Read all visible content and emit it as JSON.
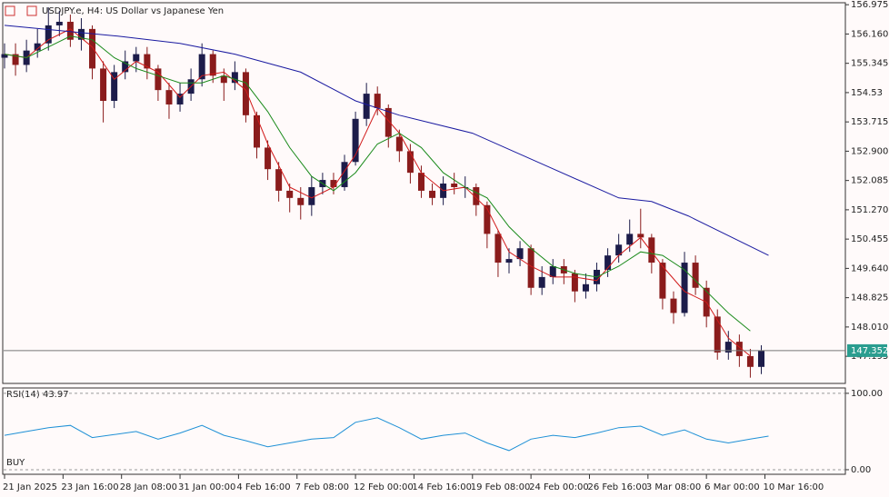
{
  "chart_data": [
    {
      "type": "candlestick",
      "title": "USDJPY.e, H4:  US Dollar vs Japanese Yen",
      "x": [
        0,
        3,
        6,
        9,
        12,
        15,
        18,
        21,
        24,
        27,
        30,
        33,
        36,
        39,
        42,
        45,
        48,
        51,
        54,
        57,
        60,
        63,
        66,
        69,
        72,
        75,
        78,
        81,
        84,
        87,
        90,
        93,
        96,
        99,
        102,
        105,
        108,
        111,
        114,
        117,
        120,
        123,
        126,
        129,
        132,
        135,
        138,
        141,
        144,
        147,
        150,
        153,
        156,
        159,
        162,
        165,
        168,
        171,
        174,
        177,
        180,
        183,
        186,
        189,
        192,
        195,
        198,
        201,
        204,
        207
      ],
      "open": [
        155.5,
        155.6,
        155.3,
        155.7,
        155.9,
        156.4,
        156.5,
        156.0,
        156.3,
        155.2,
        154.3,
        155.1,
        155.4,
        155.6,
        155.2,
        154.6,
        154.2,
        154.5,
        154.9,
        155.6,
        155.0,
        154.8,
        155.1,
        153.9,
        153.0,
        152.4,
        151.8,
        151.6,
        151.4,
        151.9,
        152.1,
        151.9,
        152.6,
        153.8,
        154.5,
        154.1,
        153.3,
        152.9,
        152.3,
        151.8,
        151.6,
        152.0,
        151.9,
        151.9,
        151.4,
        150.6,
        149.8,
        149.9,
        150.2,
        149.1,
        149.4,
        149.7,
        149.5,
        149.0,
        149.2,
        149.6,
        150.0,
        150.3,
        150.6,
        150.5,
        149.8,
        148.8,
        148.4,
        149.8,
        149.1,
        148.3,
        147.3,
        147.6,
        147.2,
        146.9
      ],
      "high": [
        155.9,
        155.9,
        156.0,
        156.3,
        156.9,
        156.8,
        156.7,
        156.6,
        156.4,
        155.4,
        155.3,
        155.7,
        155.8,
        155.8,
        155.3,
        154.8,
        154.8,
        155.2,
        155.9,
        155.7,
        155.2,
        155.4,
        155.2,
        154.0,
        153.2,
        152.6,
        152.0,
        151.9,
        152.2,
        152.3,
        152.3,
        152.8,
        154.0,
        154.8,
        154.7,
        154.2,
        153.5,
        153.1,
        152.5,
        152.0,
        152.2,
        152.3,
        152.2,
        152.0,
        151.5,
        150.7,
        150.2,
        150.4,
        150.3,
        149.7,
        149.9,
        149.9,
        149.6,
        149.5,
        149.8,
        150.2,
        150.6,
        151.0,
        151.3,
        150.6,
        149.9,
        149.0,
        150.1,
        150.0,
        149.3,
        148.5,
        147.9,
        147.8,
        147.4,
        147.5
      ],
      "low": [
        155.2,
        155.0,
        155.1,
        155.5,
        155.7,
        156.1,
        155.8,
        155.7,
        154.9,
        153.7,
        154.1,
        154.9,
        155.1,
        154.9,
        154.3,
        153.8,
        154.0,
        154.3,
        154.7,
        154.8,
        154.3,
        154.6,
        153.7,
        152.7,
        152.1,
        151.5,
        151.2,
        151.0,
        151.1,
        151.7,
        151.7,
        151.8,
        152.5,
        153.6,
        153.9,
        153.0,
        152.6,
        152.0,
        151.6,
        151.4,
        151.4,
        151.7,
        151.6,
        151.1,
        150.2,
        149.4,
        149.5,
        149.7,
        148.9,
        148.9,
        149.2,
        149.2,
        148.7,
        148.8,
        149.0,
        149.4,
        149.8,
        150.1,
        150.2,
        149.5,
        148.5,
        148.1,
        148.3,
        148.9,
        148.0,
        147.1,
        147.1,
        146.9,
        146.6,
        146.7
      ],
      "close": [
        155.6,
        155.3,
        155.7,
        155.9,
        156.4,
        156.5,
        156.0,
        156.3,
        155.2,
        154.3,
        155.1,
        155.4,
        155.6,
        155.2,
        154.6,
        154.2,
        154.5,
        154.9,
        155.6,
        155.0,
        154.8,
        155.1,
        153.9,
        153.0,
        152.4,
        151.8,
        151.6,
        151.4,
        151.9,
        152.1,
        151.9,
        152.6,
        153.8,
        154.5,
        154.1,
        153.3,
        152.9,
        152.3,
        151.8,
        151.6,
        152.0,
        151.9,
        151.9,
        151.4,
        150.6,
        149.8,
        149.9,
        150.2,
        149.1,
        149.4,
        149.7,
        149.5,
        149.0,
        149.2,
        149.6,
        150.0,
        150.3,
        150.6,
        150.5,
        149.8,
        148.8,
        148.4,
        149.8,
        149.1,
        148.3,
        147.3,
        147.6,
        147.2,
        146.9,
        147.35
      ],
      "up_color": "#1c1c4a",
      "down_color": "#8a1c1c",
      "series": [
        {
          "color": "#d11a1a",
          "x": [
            0,
            6,
            12,
            18,
            24,
            30,
            36,
            42,
            48,
            54,
            60,
            66,
            72,
            78,
            84,
            90,
            96,
            102,
            108,
            114,
            120,
            126,
            132,
            138,
            144,
            150,
            156,
            162,
            168,
            174,
            180,
            186,
            192,
            198,
            204
          ],
          "values": [
            155.6,
            155.5,
            156.0,
            156.3,
            155.8,
            154.9,
            155.4,
            155.1,
            154.4,
            155.0,
            155.1,
            154.6,
            153.1,
            151.9,
            151.6,
            151.9,
            152.8,
            154.1,
            153.4,
            152.3,
            151.8,
            151.9,
            151.3,
            150.1,
            149.7,
            149.4,
            149.4,
            149.3,
            150.0,
            150.5,
            149.7,
            149.0,
            148.7,
            147.7,
            147.2
          ]
        },
        {
          "color": "#1a8a1a",
          "x": [
            0,
            6,
            12,
            18,
            24,
            30,
            36,
            42,
            48,
            54,
            60,
            66,
            72,
            78,
            84,
            90,
            96,
            102,
            108,
            114,
            120,
            126,
            132,
            138,
            144,
            150,
            156,
            162,
            168,
            174,
            180,
            186,
            192,
            198,
            204
          ],
          "values": [
            155.6,
            155.5,
            155.8,
            156.1,
            156.0,
            155.5,
            155.2,
            155.0,
            154.8,
            154.8,
            155.0,
            154.8,
            154.0,
            153.0,
            152.2,
            151.8,
            152.3,
            153.1,
            153.4,
            153.0,
            152.3,
            151.9,
            151.6,
            150.8,
            150.2,
            149.7,
            149.5,
            149.4,
            149.7,
            150.1,
            150.0,
            149.6,
            149.0,
            148.4,
            147.9
          ]
        },
        {
          "color": "#1a1aa0",
          "x": [
            0,
            31,
            48,
            63,
            81,
            96,
            108,
            128,
            148,
            168,
            177,
            187,
            209
          ],
          "values": [
            156.4,
            156.1,
            155.9,
            155.6,
            155.1,
            154.3,
            153.9,
            153.4,
            152.5,
            151.6,
            151.5,
            151.1,
            150.0
          ]
        }
      ],
      "xlim": [
        0,
        230
      ],
      "ylim": [
        146.44,
        157.03
      ],
      "yticks": [
        156.975,
        {
          "value": 156.16,
          "label": "156.160"
        },
        155.345,
        154.53,
        153.715,
        {
          "value": 152.9,
          "label": "152.900"
        },
        152.085,
        {
          "value": 151.27,
          "label": "151.270"
        },
        150.455,
        {
          "value": 149.64,
          "label": "149.640"
        },
        148.825,
        {
          "value": 148.01,
          "label": "148.010"
        },
        147.195
      ],
      "xticks": [
        {
          "value": 0,
          "label": "21 Jan 2025"
        },
        {
          "value": 16,
          "label": "23 Jan 16:00"
        },
        {
          "value": 32,
          "label": "28 Jan 08:00"
        },
        {
          "value": 48,
          "label": "31 Jan 00:00"
        },
        {
          "value": 64,
          "label": "4 Feb 16:00"
        },
        {
          "value": 80,
          "label": "7 Feb 08:00"
        },
        {
          "value": 96,
          "label": "12 Feb 00:00"
        },
        {
          "value": 112,
          "label": "14 Feb 16:00"
        },
        {
          "value": 128,
          "label": "19 Feb 08:00"
        },
        {
          "value": 144,
          "label": "24 Feb 00:00"
        },
        {
          "value": 160,
          "label": "26 Feb 16:00"
        },
        {
          "value": 176,
          "label": "3 Mar 08:00"
        },
        {
          "value": 192,
          "label": "6 Mar 00:00"
        },
        {
          "value": 208,
          "label": "10 Mar 16:00"
        }
      ],
      "current_price": 147.352,
      "current_price_color": "#2a9d8f"
    },
    {
      "type": "line",
      "title": "RSI(14) 43.97",
      "annotation": "BUY",
      "color": "#1e90d6",
      "x": [
        0,
        6,
        12,
        18,
        24,
        30,
        36,
        42,
        48,
        54,
        60,
        66,
        72,
        78,
        84,
        90,
        96,
        102,
        108,
        114,
        120,
        126,
        132,
        138,
        144,
        150,
        156,
        162,
        168,
        174,
        180,
        186,
        192,
        198,
        204,
        209
      ],
      "values": [
        45,
        50,
        55,
        58,
        42,
        46,
        50,
        40,
        48,
        58,
        45,
        38,
        30,
        35,
        40,
        42,
        62,
        68,
        55,
        40,
        45,
        48,
        35,
        25,
        40,
        45,
        42,
        48,
        55,
        57,
        45,
        52,
        40,
        35,
        40,
        43.97
      ],
      "xlim": [
        0,
        230
      ],
      "ylim": [
        -6,
        107
      ],
      "yticks": [
        {
          "value": 100,
          "label": "100.00"
        },
        {
          "value": 0,
          "label": "0.00"
        }
      ]
    }
  ]
}
